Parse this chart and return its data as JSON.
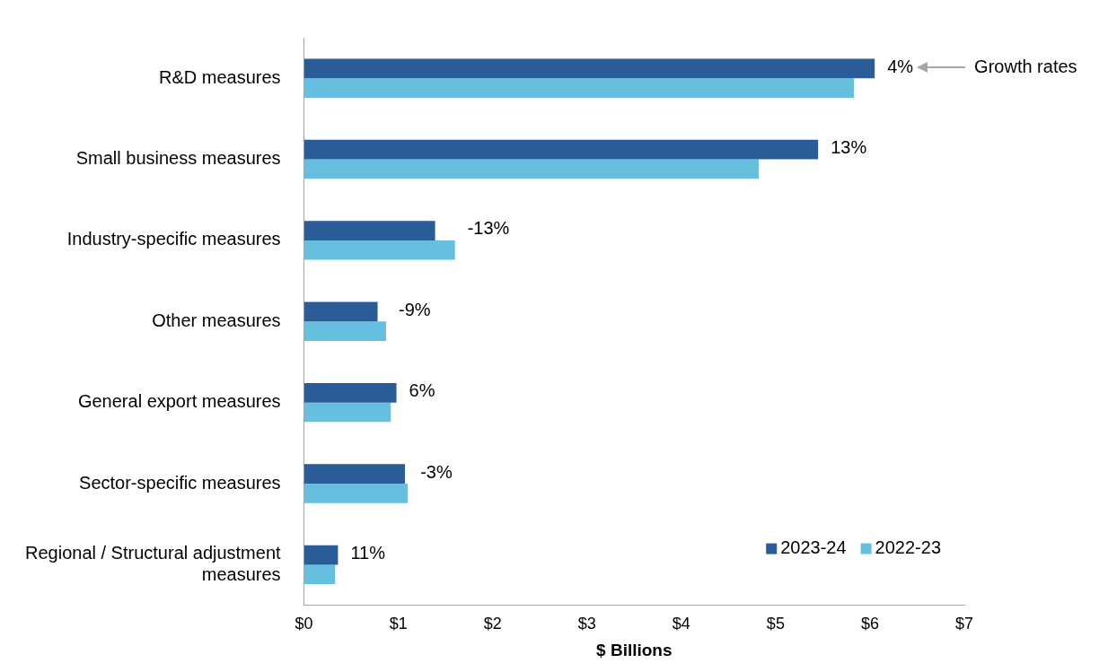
{
  "chart_data": {
    "type": "bar",
    "orientation": "horizontal",
    "xlabel": "$ Billions",
    "categories": [
      "R&D measures",
      "Small business measures",
      "Industry-specific measures",
      "Other measures",
      "General export measures",
      "Sector-specific measures",
      "Regional / Structural adjustment measures"
    ],
    "series": [
      {
        "name": "2023-24",
        "color": "#2a5c9a",
        "values": [
          6.05,
          5.45,
          1.39,
          0.78,
          0.98,
          1.07,
          0.36
        ]
      },
      {
        "name": "2022-23",
        "color": "#66bfdf",
        "values": [
          5.83,
          4.82,
          1.6,
          0.87,
          0.92,
          1.1,
          0.33
        ]
      }
    ],
    "xlim": [
      0,
      7
    ],
    "xticks": [
      {
        "value": 0,
        "label": "$0"
      },
      {
        "value": 1,
        "label": "$1"
      },
      {
        "value": 2,
        "label": "$2"
      },
      {
        "value": 3,
        "label": "$3"
      },
      {
        "value": 4,
        "label": "$4"
      },
      {
        "value": 5,
        "label": "$5"
      },
      {
        "value": 6,
        "label": "$6"
      },
      {
        "value": 7,
        "label": "$7"
      }
    ],
    "grid": false,
    "legend": "bottom right",
    "annotations": [
      "4%",
      "13%",
      "-13%",
      "-9%",
      "6%",
      "-3%",
      "11%",
      "Growth rates"
    ]
  }
}
